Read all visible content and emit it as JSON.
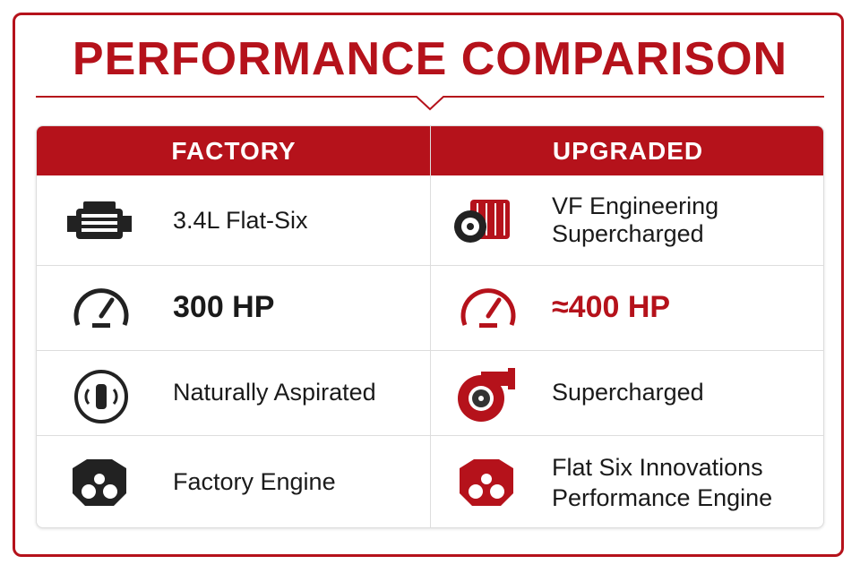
{
  "title": "PERFORMANCE COMPARISON",
  "table": {
    "header": [
      "FACTORY",
      "UPGRADED"
    ],
    "rows": [
      [
        "3.4L Flat-Six",
        "VF Engineering Supercharged"
      ],
      [
        "300 HP",
        "≈400 HP"
      ],
      [
        "Naturally Aspirated",
        "Supercharged"
      ],
      [
        "Factory Engine",
        [
          "Flat Six Innovations",
          "Performance Engine"
        ]
      ]
    ]
  }
}
